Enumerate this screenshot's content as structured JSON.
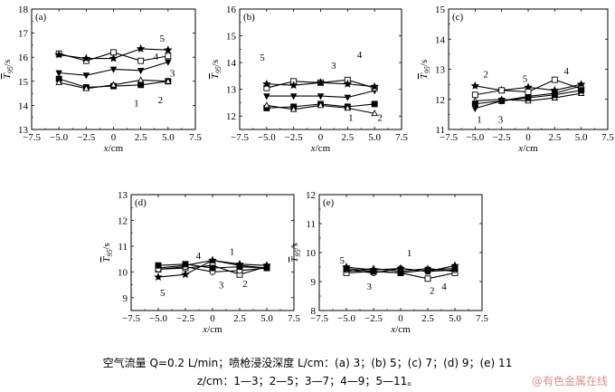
{
  "chart_data": [
    {
      "type": "line",
      "panel_label": "(a)",
      "xlabel": "x/cm",
      "ylabel": "T95/s",
      "xlim": [
        -7.5,
        7.5
      ],
      "ylim": [
        13,
        18
      ],
      "xticks": [
        "−7.5",
        "−5.0",
        "−2.5",
        "0",
        "2.5",
        "5.0",
        "7.5"
      ],
      "yticks": [
        "13",
        "14",
        "15",
        "16",
        "17",
        "18"
      ],
      "x": [
        -5,
        -2.5,
        0,
        2.5,
        5
      ],
      "series": [
        {
          "name": "1",
          "marker": "square-filled",
          "values": [
            15.1,
            14.75,
            14.8,
            14.85,
            15.0
          ]
        },
        {
          "name": "2",
          "marker": "triangle-open",
          "values": [
            14.95,
            14.7,
            14.85,
            15.05,
            15.0
          ]
        },
        {
          "name": "3",
          "marker": "triangle-down-filled",
          "values": [
            15.35,
            15.25,
            15.5,
            15.45,
            15.8
          ]
        },
        {
          "name": "4",
          "marker": "square-open",
          "values": [
            16.15,
            15.85,
            16.2,
            15.85,
            16.05
          ]
        },
        {
          "name": "5",
          "marker": "star-filled",
          "values": [
            16.1,
            15.95,
            15.95,
            16.35,
            16.3
          ]
        }
      ],
      "annotations": [
        {
          "text": "1",
          "x": 2.1,
          "y": 14.1
        },
        {
          "text": "2",
          "x": 4.3,
          "y": 14.25
        },
        {
          "text": "3",
          "x": 5.4,
          "y": 15.35
        },
        {
          "text": "4",
          "x": 3.9,
          "y": 16.05
        },
        {
          "text": "5",
          "x": 4.45,
          "y": 16.8
        }
      ]
    },
    {
      "type": "line",
      "panel_label": "(b)",
      "xlabel": "x/cm",
      "ylabel": "T95/s",
      "xlim": [
        -7.5,
        7.5
      ],
      "ylim": [
        11.5,
        16
      ],
      "xticks": [
        "−7.5",
        "−5.0",
        "−2.5",
        "0",
        "2.5",
        "5.0",
        "7.5"
      ],
      "yticks": [
        "12",
        "13",
        "14",
        "15",
        "16"
      ],
      "x": [
        -5,
        -2.5,
        0,
        2.5,
        5
      ],
      "series": [
        {
          "name": "1",
          "marker": "square-filled",
          "values": [
            12.3,
            12.35,
            12.45,
            12.35,
            12.45
          ]
        },
        {
          "name": "2",
          "marker": "triangle-open",
          "values": [
            12.4,
            12.25,
            12.4,
            12.3,
            12.1
          ]
        },
        {
          "name": "3",
          "marker": "triangle-down-filled",
          "values": [
            12.75,
            12.75,
            12.75,
            12.7,
            12.95
          ]
        },
        {
          "name": "4",
          "marker": "square-open",
          "values": [
            13.05,
            13.3,
            13.25,
            13.35,
            13.05
          ]
        },
        {
          "name": "5",
          "marker": "star-filled",
          "values": [
            13.2,
            13.15,
            13.25,
            13.2,
            13.1
          ]
        }
      ],
      "annotations": [
        {
          "text": "1",
          "x": 2.8,
          "y": 11.95
        },
        {
          "text": "2",
          "x": 5.5,
          "y": 11.95
        },
        {
          "text": "3",
          "x": 1.2,
          "y": 13.9
        },
        {
          "text": "4",
          "x": 3.6,
          "y": 14.3
        },
        {
          "text": "5",
          "x": -5.4,
          "y": 14.2
        }
      ]
    },
    {
      "type": "line",
      "panel_label": "(c)",
      "xlabel": "x/cm",
      "ylabel": "T95/s",
      "xlim": [
        -7.5,
        7.5
      ],
      "ylim": [
        11,
        15
      ],
      "xticks": [
        "−7.5",
        "−5.0",
        "−2.5",
        "0",
        "2.5",
        "5.0",
        "7.5"
      ],
      "yticks": [
        "11",
        "12",
        "13",
        "14",
        "15"
      ],
      "x": [
        -5,
        -2.5,
        0,
        2.5,
        5
      ],
      "series": [
        {
          "name": "1",
          "marker": "triangle-down-filled",
          "values": [
            11.7,
            11.95,
            12.1,
            12.2,
            12.45
          ]
        },
        {
          "name": "2",
          "marker": "star-filled",
          "values": [
            12.45,
            12.3,
            12.4,
            12.3,
            12.5
          ]
        },
        {
          "name": "3",
          "marker": "triangle-open",
          "values": [
            11.95,
            12.0,
            11.95,
            12.05,
            12.2
          ]
        },
        {
          "name": "4",
          "marker": "square-open",
          "values": [
            12.15,
            12.3,
            12.25,
            12.65,
            12.35
          ]
        },
        {
          "name": "5",
          "marker": "square-filled",
          "values": [
            11.85,
            11.95,
            12.05,
            12.15,
            12.3
          ]
        }
      ],
      "annotations": [
        {
          "text": "1",
          "x": -4.6,
          "y": 11.35
        },
        {
          "text": "2",
          "x": -4.0,
          "y": 12.85
        },
        {
          "text": "3",
          "x": -2.6,
          "y": 11.35
        },
        {
          "text": "4",
          "x": 3.6,
          "y": 12.95
        },
        {
          "text": "5",
          "x": -0.3,
          "y": 12.7
        }
      ]
    },
    {
      "type": "line",
      "panel_label": "(d)",
      "xlabel": "x/cm",
      "ylabel": "T95/s",
      "xlim": [
        -7.5,
        7.5
      ],
      "ylim": [
        8.5,
        13
      ],
      "xticks": [
        "−7.5",
        "−5.0",
        "−2.5",
        "0",
        "2.5",
        "5.0",
        "7.5"
      ],
      "yticks": [
        "9",
        "10",
        "11",
        "12",
        "13"
      ],
      "x": [
        -5,
        -2.5,
        0,
        2.5,
        5
      ],
      "series": [
        {
          "name": "1",
          "marker": "triangle-open",
          "values": [
            10.15,
            10.25,
            10.45,
            10.25,
            10.15
          ]
        },
        {
          "name": "2",
          "marker": "square-open",
          "values": [
            10.1,
            10.15,
            10.25,
            9.9,
            10.2
          ]
        },
        {
          "name": "3",
          "marker": "circle-open",
          "values": [
            10.1,
            10.2,
            10.0,
            10.05,
            10.15
          ]
        },
        {
          "name": "4",
          "marker": "square-filled",
          "values": [
            10.25,
            10.3,
            10.15,
            10.2,
            10.15
          ]
        },
        {
          "name": "5",
          "marker": "star-filled",
          "values": [
            9.8,
            9.9,
            10.45,
            10.3,
            10.25
          ]
        }
      ],
      "annotations": [
        {
          "text": "1",
          "x": 1.8,
          "y": 10.8
        },
        {
          "text": "2",
          "x": 3.0,
          "y": 9.55
        },
        {
          "text": "3",
          "x": 0.8,
          "y": 9.5
        },
        {
          "text": "4",
          "x": -1.3,
          "y": 10.65
        },
        {
          "text": "5",
          "x": -4.6,
          "y": 9.2
        }
      ]
    },
    {
      "type": "line",
      "panel_label": "(e)",
      "xlabel": "x/cm",
      "ylabel": "T95/s",
      "xlim": [
        -7.5,
        7.5
      ],
      "ylim": [
        8,
        12
      ],
      "xticks": [
        "−7.5",
        "−5.0",
        "−2.5",
        "0",
        "2.5",
        "5.0",
        "7.5"
      ],
      "yticks": [
        "8",
        "9",
        "10",
        "11",
        "12"
      ],
      "x": [
        -5,
        -2.5,
        0,
        2.5,
        5
      ],
      "series": [
        {
          "name": "1",
          "marker": "triangle-open",
          "values": [
            9.35,
            9.45,
            9.35,
            9.45,
            9.35
          ]
        },
        {
          "name": "2",
          "marker": "square-open",
          "values": [
            9.3,
            9.35,
            9.3,
            9.1,
            9.3
          ]
        },
        {
          "name": "3",
          "marker": "circle-open",
          "values": [
            9.4,
            9.3,
            9.45,
            9.35,
            9.4
          ]
        },
        {
          "name": "4",
          "marker": "square-filled",
          "values": [
            9.45,
            9.35,
            9.3,
            9.4,
            9.45
          ]
        },
        {
          "name": "5",
          "marker": "star-filled",
          "values": [
            9.5,
            9.4,
            9.45,
            9.35,
            9.55
          ]
        }
      ],
      "annotations": [
        {
          "text": "1",
          "x": 0.8,
          "y": 10.0
        },
        {
          "text": "2",
          "x": 2.9,
          "y": 8.7
        },
        {
          "text": "3",
          "x": -2.9,
          "y": 8.85
        },
        {
          "text": "4",
          "x": 4.0,
          "y": 8.85
        },
        {
          "text": "5",
          "x": -5.4,
          "y": 9.75
        }
      ]
    }
  ],
  "caption": {
    "line1": "空气流量 Q=0.2 L/min；喷枪浸没深度 L/cm：(a) 3；(b) 5；(c) 7；(d) 9；(e) 11",
    "line2": "z/cm：1—3；2—5；3—7；4—9；5—11。"
  },
  "watermark": "@有色金属在线",
  "colors": {
    "line": "#000000",
    "background": "#ffffff",
    "watermark": "#c0392b"
  }
}
